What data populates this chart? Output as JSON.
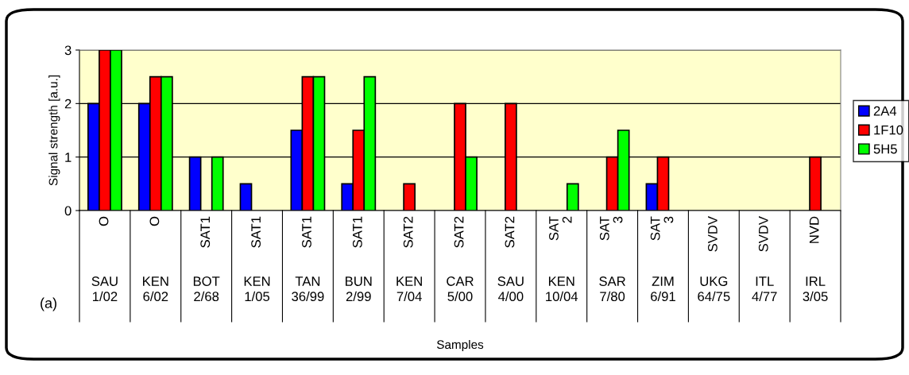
{
  "chart_data": {
    "type": "bar",
    "categories": [
      "SAU\n1/02",
      "KEN\n6/02",
      "BOT\n2/68",
      "KEN\n1/05",
      "TAN\n36/99",
      "BUN\n2/99",
      "KEN\n7/04",
      "CAR\n5/00",
      "SAU\n4/00",
      "KEN\n10/04",
      "SAR\n7/80",
      "ZIM\n6/91",
      "UKG\n64/75",
      "ITL\n4/77",
      "IRL\n3/05"
    ],
    "series": [
      {
        "name": "2A4",
        "color": "#0000ff",
        "values": [
          2,
          2,
          1,
          0.5,
          1.5,
          0.5,
          0,
          0,
          0,
          0,
          0,
          0.5,
          0,
          0,
          0
        ]
      },
      {
        "name": "1F10",
        "color": "#ff0000",
        "values": [
          3,
          2.5,
          0,
          0,
          2.5,
          1.5,
          0.5,
          2,
          2,
          0,
          1,
          1,
          0,
          0,
          1
        ]
      },
      {
        "name": "5H5",
        "color": "#00ff00",
        "values": [
          3,
          2.5,
          1,
          0,
          2.5,
          2.5,
          0,
          1,
          0,
          0.5,
          1.5,
          0,
          0,
          0,
          0
        ]
      }
    ],
    "xlabel": "Samples",
    "ylabel": "Signal strength [a.u.]",
    "ylim": [
      0,
      3
    ],
    "yticks": [
      0,
      1,
      2,
      3
    ],
    "grid": "y",
    "legend": "right",
    "annotations": [
      "O",
      "O",
      "SAT1",
      "SAT1",
      "SAT1",
      "SAT1",
      "SAT2",
      "SAT2",
      "SAT2",
      "SAT\n2",
      "SAT\n3",
      "SAT\n3",
      "SVDV",
      "SVDV",
      "NVD",
      "(a)"
    ]
  }
}
